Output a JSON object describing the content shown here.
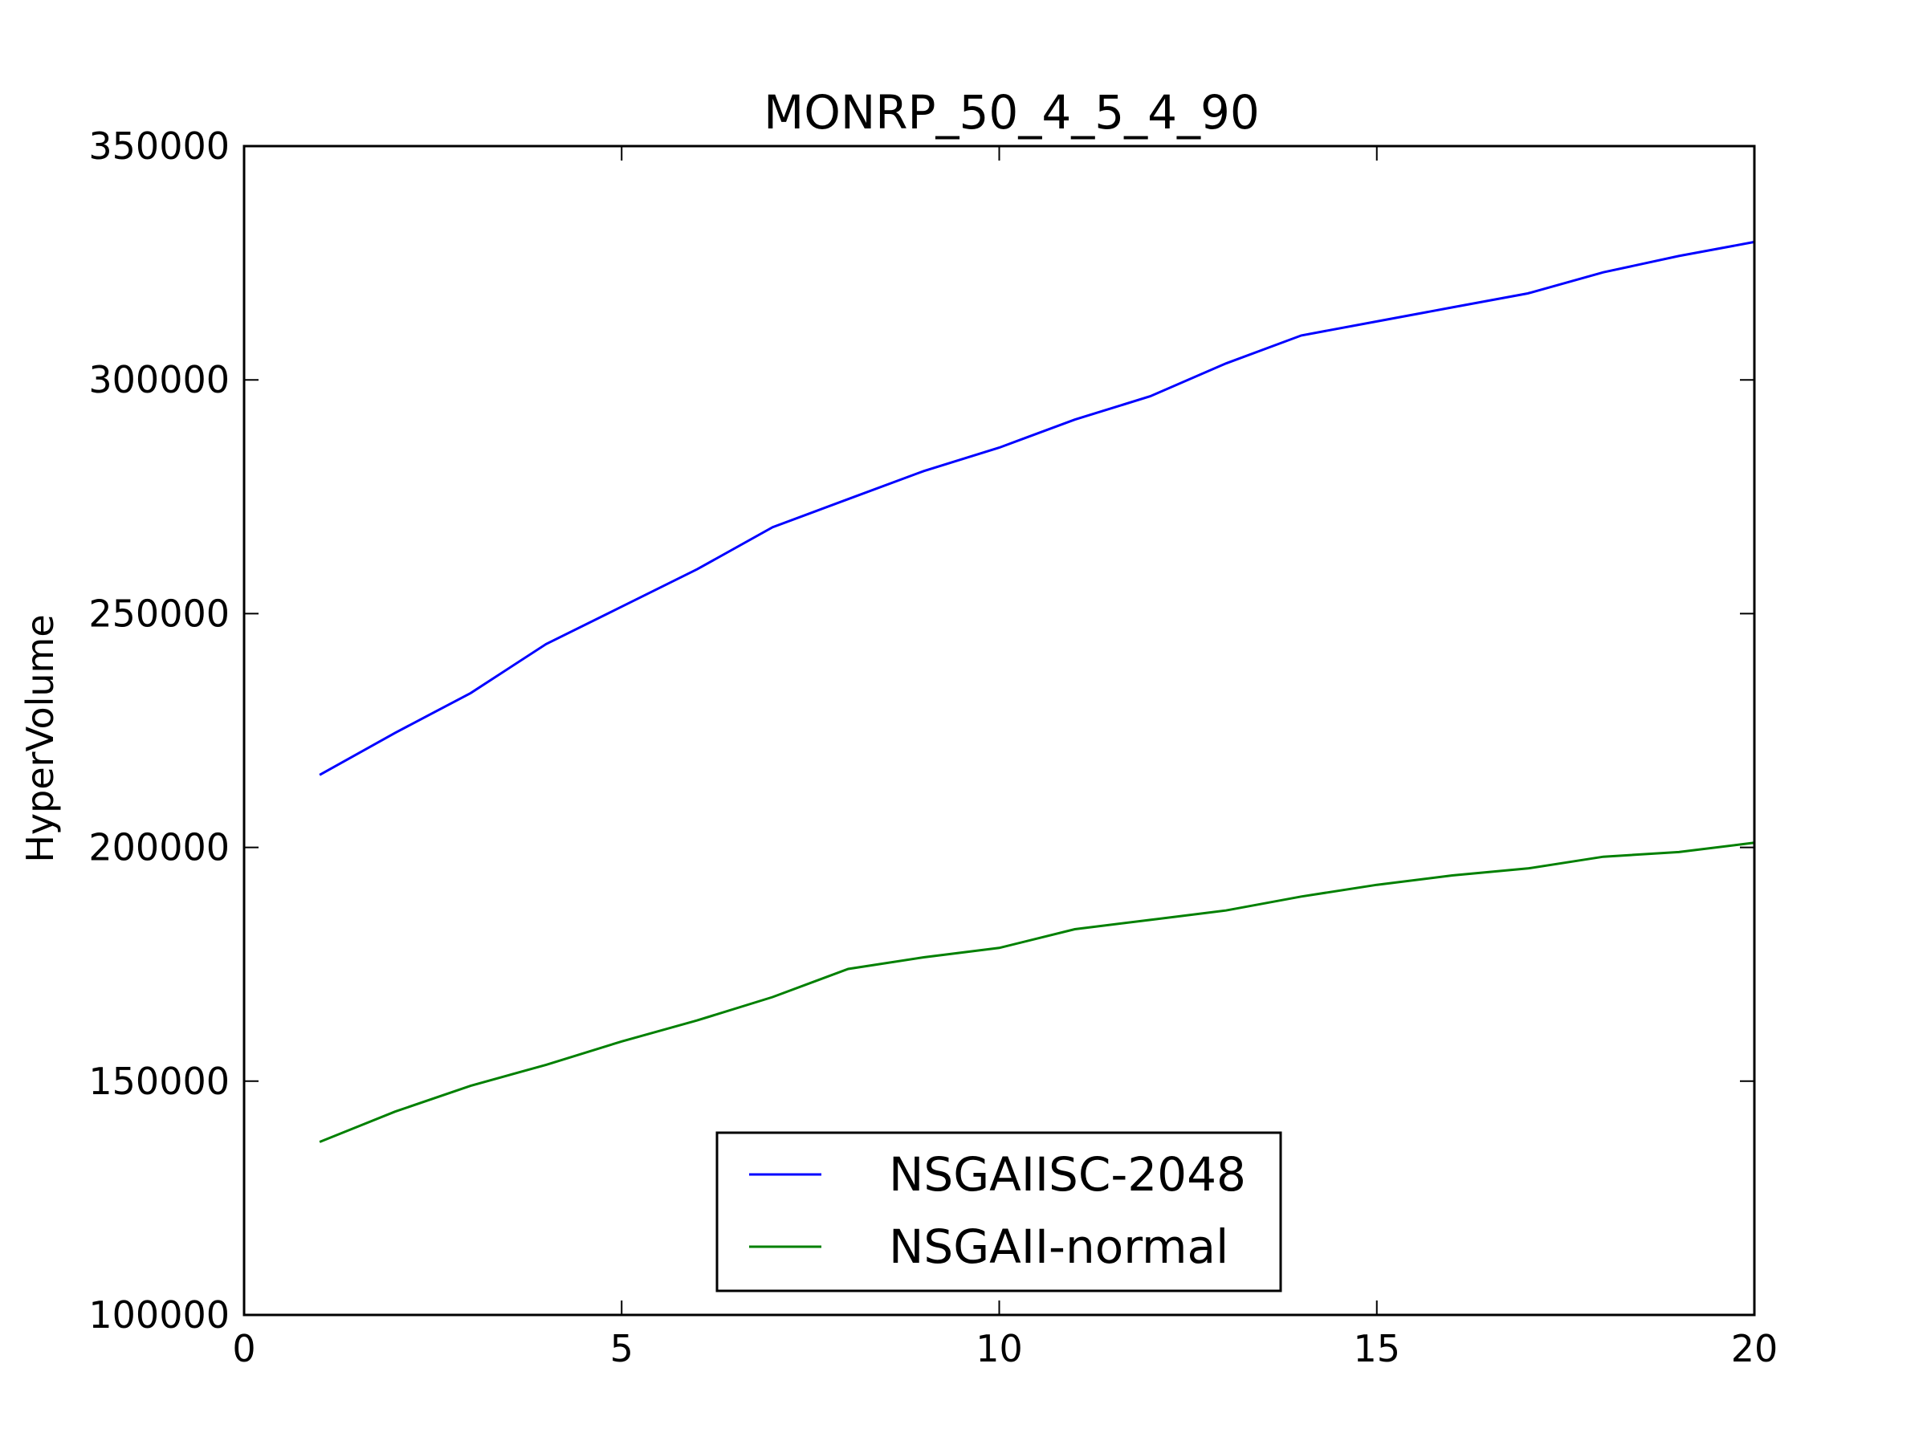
{
  "chart_data": {
    "type": "line",
    "title": "MONRP_50_4_5_4_90",
    "xlabel": "",
    "ylabel": "HyperVolume",
    "xlim": [
      0,
      20
    ],
    "ylim": [
      100000,
      350000
    ],
    "xticks": [
      0,
      5,
      10,
      15,
      20
    ],
    "yticks": [
      100000,
      150000,
      200000,
      250000,
      300000,
      350000
    ],
    "xtick_labels": [
      "0",
      "5",
      "10",
      "15",
      "20"
    ],
    "ytick_labels": [
      "100000",
      "150000",
      "200000",
      "250000",
      "300000",
      "350000"
    ],
    "grid": false,
    "legend_position": "lower center",
    "x": [
      1,
      2,
      3,
      4,
      5,
      6,
      7,
      8,
      9,
      10,
      11,
      12,
      13,
      14,
      15,
      16,
      17,
      18,
      19,
      20
    ],
    "series": [
      {
        "name": "NSGAIISC-2048",
        "color": "#0000ff",
        "values": [
          215500,
          224500,
          233000,
          243500,
          251500,
          259500,
          268500,
          274500,
          280500,
          285500,
          291500,
          296500,
          303500,
          309500,
          312500,
          315500,
          318500,
          323000,
          326500,
          329500
        ]
      },
      {
        "name": "NSGAII-normal",
        "color": "#008000",
        "values": [
          137000,
          143500,
          149000,
          153500,
          158500,
          163000,
          168000,
          174000,
          176500,
          178500,
          182500,
          184500,
          186500,
          189500,
          192000,
          194000,
          195500,
          198000,
          199000,
          201000
        ]
      }
    ]
  }
}
